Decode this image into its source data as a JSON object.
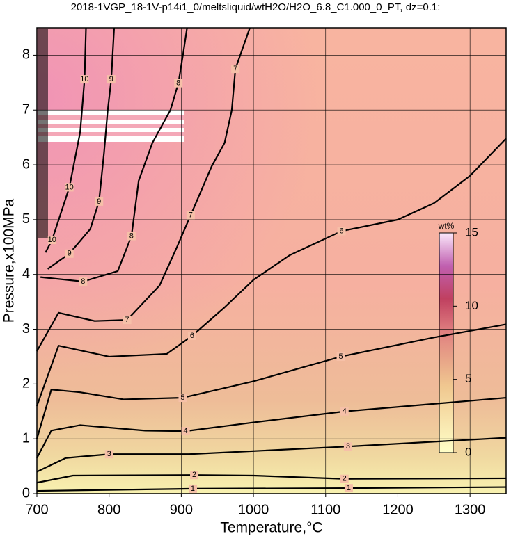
{
  "chart_data": {
    "type": "contour",
    "title": "2018-1VGP_18-1V-p14i1_0/meltsliquid/wtH2O/H2O_6.8_C1.000_0_PT, dz=0.1:",
    "xlabel": "Temperature,°C",
    "ylabel": "Pressure,x100MPa",
    "xlim": [
      700,
      1350
    ],
    "ylim": [
      0,
      8.5
    ],
    "xticks": [
      700,
      800,
      900,
      1000,
      1100,
      1200,
      1300
    ],
    "yticks": [
      0,
      1,
      2,
      3,
      4,
      5,
      6,
      7,
      8
    ],
    "grid": true,
    "color": "#000000",
    "contours": [
      {
        "level": 1,
        "x": [
          700,
          916,
          1132,
          1350
        ],
        "y": [
          0.05,
          0.09,
          0.1,
          0.12
        ]
      },
      {
        "level": 2,
        "x": [
          700,
          750,
          918,
          1000,
          1126,
          1350
        ],
        "y": [
          0.2,
          0.33,
          0.34,
          0.33,
          0.27,
          0.28
        ]
      },
      {
        "level": 3,
        "x": [
          700,
          740,
          800,
          911,
          1131,
          1350
        ],
        "y": [
          0.4,
          0.65,
          0.72,
          0.72,
          0.86,
          1.02
        ]
      },
      {
        "level": 4,
        "x": [
          700,
          720,
          760,
          850,
          906,
          1000,
          1126,
          1350
        ],
        "y": [
          0.65,
          1.15,
          1.25,
          1.15,
          1.14,
          1.3,
          1.5,
          1.75
        ]
      },
      {
        "level": 5,
        "x": [
          700,
          720,
          760,
          820,
          902,
          1000,
          1121,
          1250,
          1350
        ],
        "y": [
          1.0,
          1.9,
          1.85,
          1.72,
          1.75,
          2.05,
          2.5,
          2.85,
          3.09
        ]
      },
      {
        "level": 6,
        "x": [
          700,
          730,
          800,
          880,
          915,
          960,
          1000,
          1050,
          1122,
          1200,
          1250,
          1300,
          1350
        ],
        "y": [
          1.6,
          2.7,
          2.5,
          2.55,
          2.88,
          3.4,
          3.9,
          4.35,
          4.79,
          5.0,
          5.3,
          5.8,
          6.48
        ]
      },
      {
        "level": 7,
        "x": [
          700,
          730,
          780,
          825,
          870,
          894,
          913,
          942,
          960,
          970,
          975,
          995
        ],
        "y": [
          2.6,
          3.3,
          3.15,
          3.17,
          3.8,
          4.5,
          5.08,
          5.97,
          6.4,
          7.0,
          7.75,
          8.5
        ]
      },
      {
        "level": 8,
        "x": [
          705,
          764,
          812,
          831,
          841,
          860,
          885,
          896,
          903,
          908
        ],
        "y": [
          3.95,
          3.87,
          4.06,
          4.7,
          5.71,
          6.4,
          7.0,
          7.49,
          8.06,
          8.5
        ]
      },
      {
        "level": 9,
        "x": [
          715,
          745,
          774,
          786,
          793,
          798,
          803,
          807
        ],
        "y": [
          4.1,
          4.38,
          4.83,
          5.33,
          6.22,
          6.98,
          7.56,
          8.5
        ]
      },
      {
        "level": 10,
        "x": [
          712,
          721,
          745,
          760,
          766,
          768
        ],
        "y": [
          4.4,
          4.63,
          5.59,
          6.6,
          7.56,
          8.5
        ]
      }
    ],
    "colorbar": {
      "label": "wt%",
      "lim": [
        0,
        15
      ],
      "ticks": [
        0,
        5,
        10,
        15
      ]
    }
  }
}
